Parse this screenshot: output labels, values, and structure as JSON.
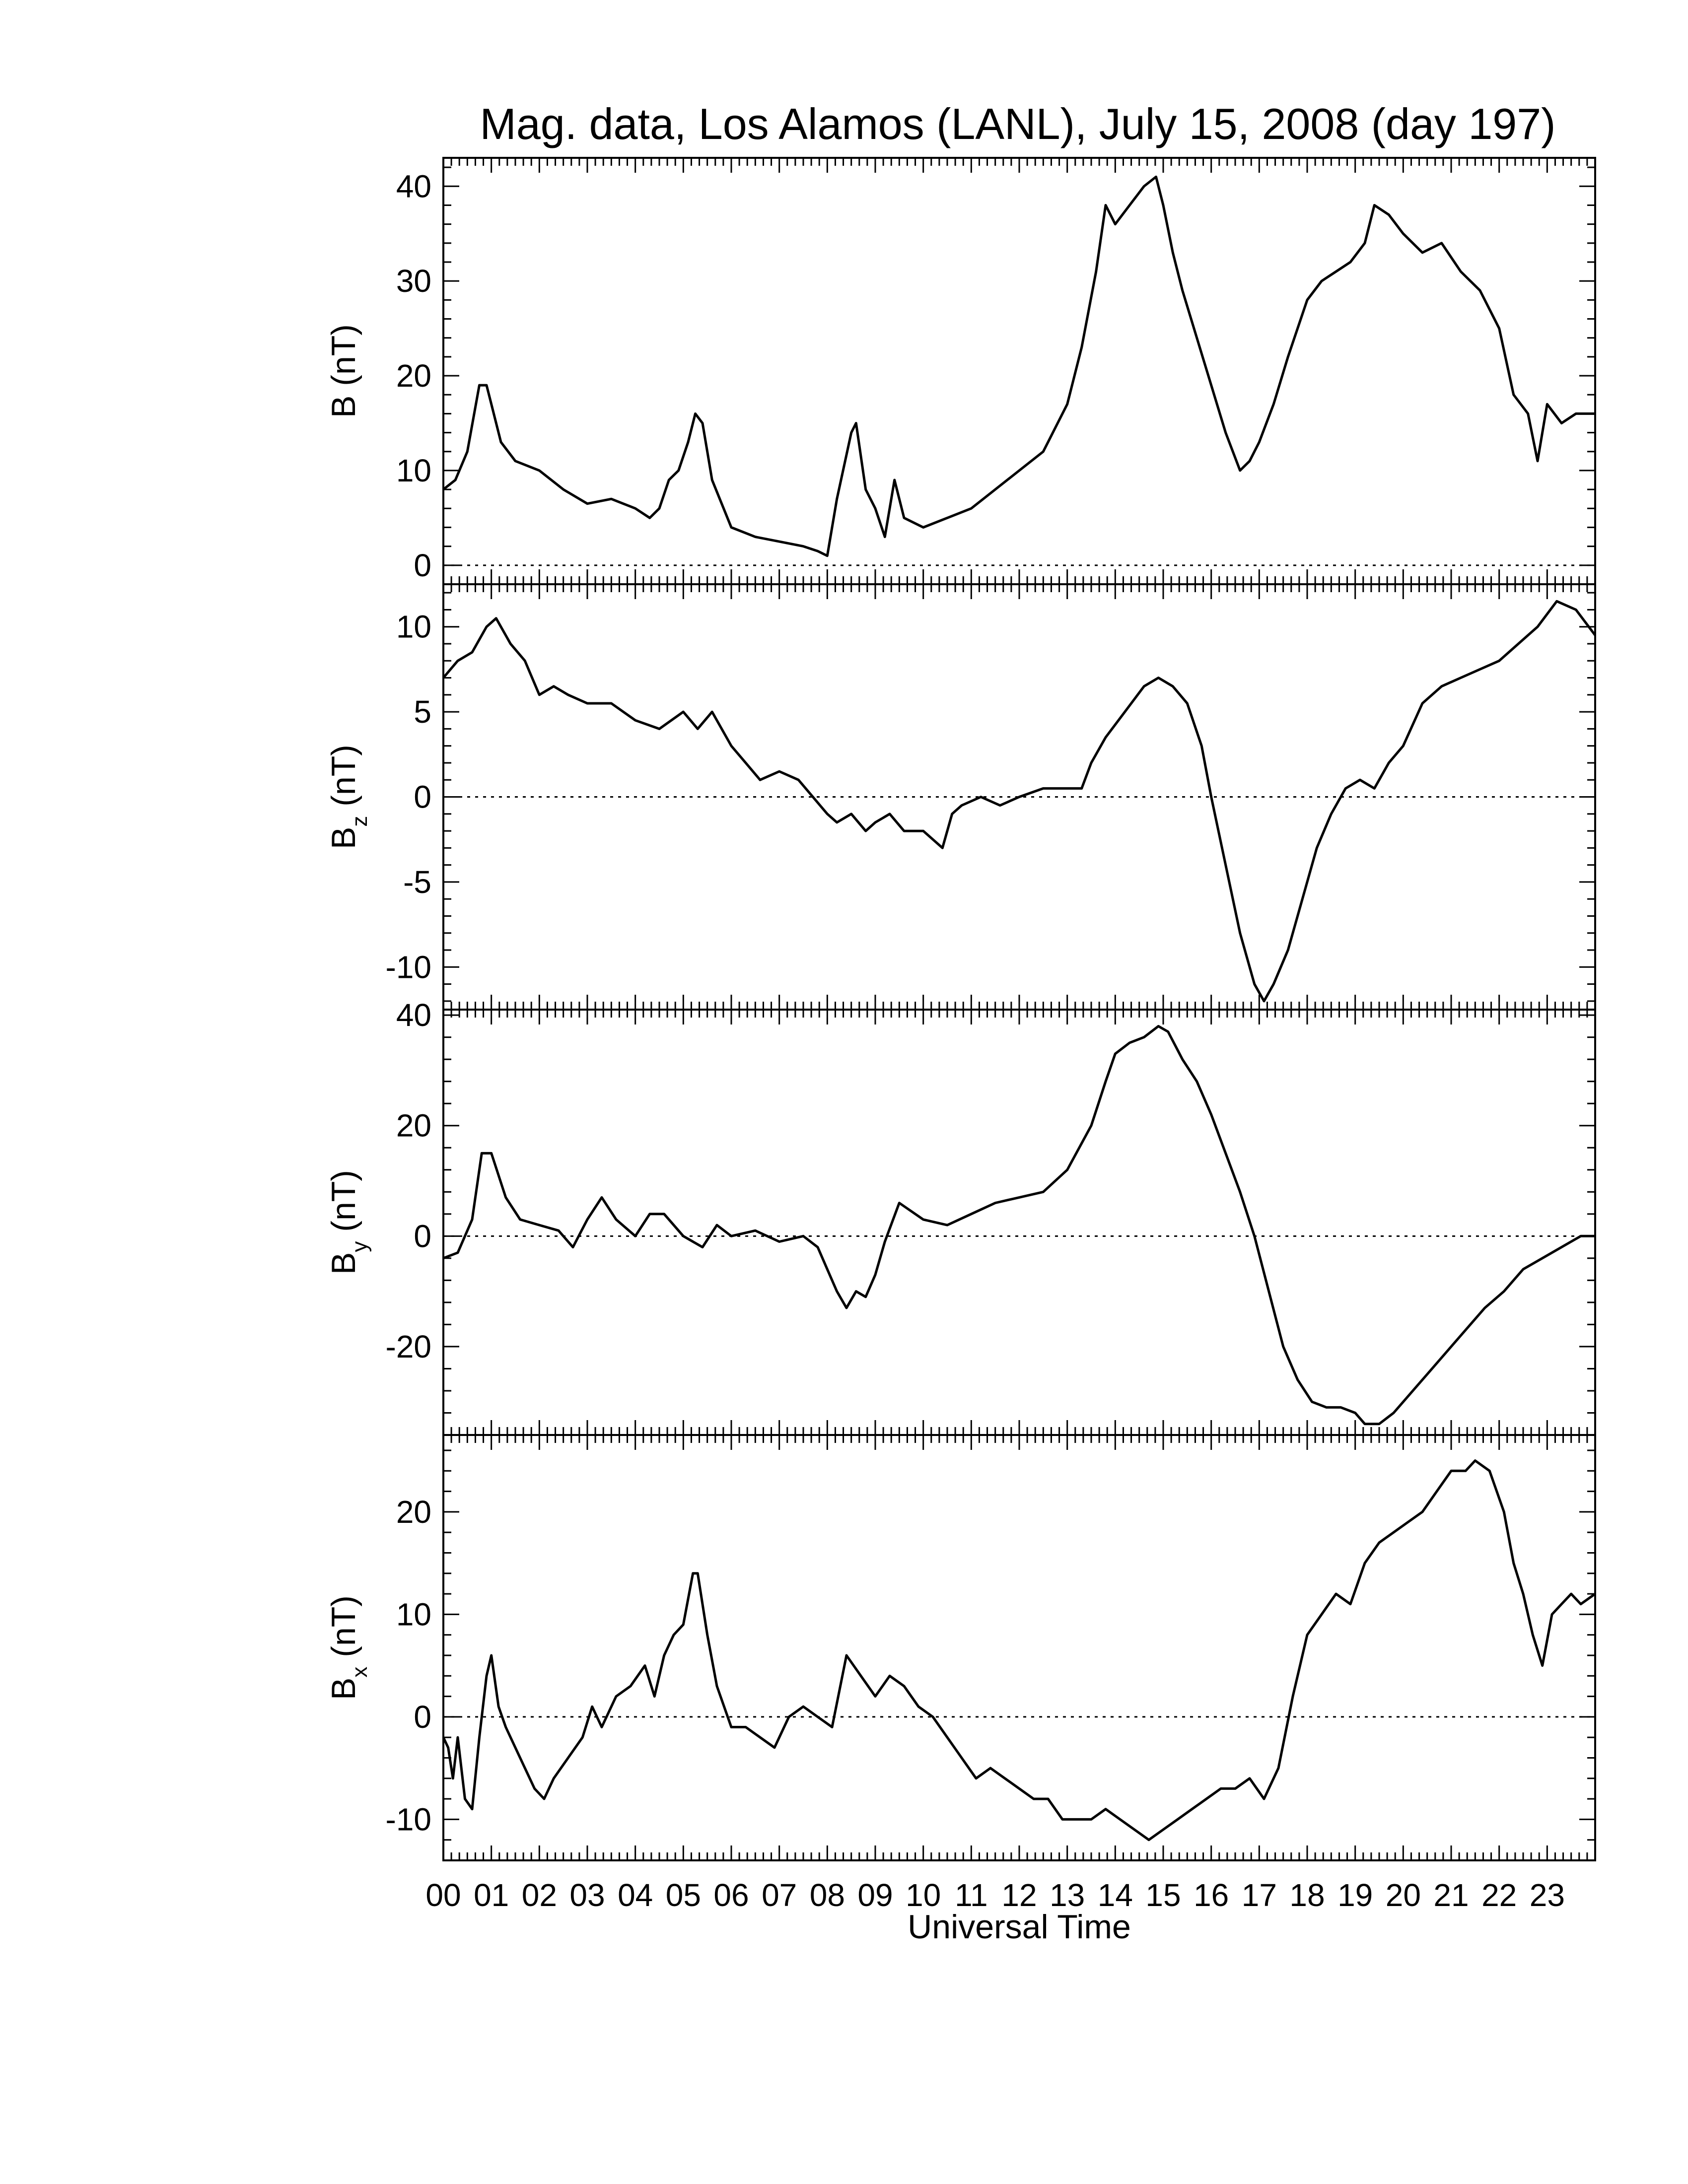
{
  "title": "Mag. data, Los Alamos (LANL), July 15, 2008 (day 197)",
  "xlabel": "Universal Time",
  "x_tick_labels": [
    "00",
    "01",
    "02",
    "03",
    "04",
    "05",
    "06",
    "07",
    "08",
    "09",
    "10",
    "11",
    "12",
    "13",
    "14",
    "15",
    "16",
    "17",
    "18",
    "19",
    "20",
    "21",
    "22",
    "23"
  ],
  "chart_data": [
    {
      "type": "line",
      "name": "B",
      "ylabel_main": "B (nT)",
      "ylabel_sub": "",
      "ylabel_suffix": "",
      "xlim": [
        0,
        24
      ],
      "ylim": [
        -2,
        43
      ],
      "yticks": [
        0,
        10,
        20,
        30,
        40
      ],
      "zero_line": true,
      "x": [
        0.0,
        0.25,
        0.5,
        0.75,
        0.9,
        1.0,
        1.2,
        1.5,
        2.0,
        2.5,
        3.0,
        3.5,
        4.0,
        4.3,
        4.5,
        4.7,
        4.9,
        5.1,
        5.25,
        5.4,
        5.6,
        6.0,
        6.5,
        7.0,
        7.5,
        7.8,
        8.0,
        8.2,
        8.5,
        8.6,
        8.8,
        9.0,
        9.2,
        9.4,
        9.6,
        10.0,
        10.5,
        11.0,
        11.5,
        12.0,
        12.5,
        13.0,
        13.3,
        13.6,
        13.8,
        14.0,
        14.3,
        14.6,
        14.85,
        15.0,
        15.2,
        15.4,
        15.7,
        16.0,
        16.3,
        16.6,
        16.8,
        17.0,
        17.3,
        17.6,
        18.0,
        18.3,
        18.6,
        18.9,
        19.2,
        19.4,
        19.7,
        20.0,
        20.4,
        20.8,
        21.2,
        21.6,
        22.0,
        22.3,
        22.6,
        22.8,
        23.0,
        23.3,
        23.6,
        24.0
      ],
      "y": [
        8,
        9,
        12,
        19,
        19,
        17,
        13,
        11,
        10,
        8,
        6.5,
        7,
        6,
        5,
        6,
        9,
        10,
        13,
        16,
        15,
        9,
        4,
        3,
        2.5,
        2,
        1.5,
        1,
        7,
        14,
        15,
        8,
        6,
        3,
        9,
        5,
        4,
        5,
        6,
        8,
        10,
        12,
        17,
        23,
        31,
        38,
        36,
        38,
        40,
        41,
        38,
        33,
        29,
        24,
        19,
        14,
        10,
        11,
        13,
        17,
        22,
        28,
        30,
        31,
        32,
        34,
        38,
        37,
        35,
        33,
        34,
        31,
        29,
        25,
        18,
        16,
        11,
        17,
        15,
        16,
        16
      ]
    },
    {
      "type": "line",
      "name": "Bz",
      "ylabel_main": "B",
      "ylabel_sub": "z",
      "ylabel_suffix": " (nT)",
      "xlim": [
        0,
        24
      ],
      "ylim": [
        -12.5,
        12.5
      ],
      "yticks": [
        -10,
        -5,
        0,
        5,
        10
      ],
      "zero_line": true,
      "x": [
        0.0,
        0.3,
        0.6,
        0.9,
        1.1,
        1.4,
        1.7,
        2.0,
        2.3,
        2.6,
        3.0,
        3.5,
        4.0,
        4.5,
        5.0,
        5.3,
        5.6,
        6.0,
        6.3,
        6.6,
        7.0,
        7.4,
        7.7,
        8.0,
        8.2,
        8.5,
        8.8,
        9.0,
        9.3,
        9.6,
        10.0,
        10.4,
        10.6,
        10.8,
        11.2,
        11.6,
        12.0,
        12.5,
        13.0,
        13.3,
        13.5,
        13.8,
        14.2,
        14.6,
        14.9,
        15.2,
        15.5,
        15.8,
        16.0,
        16.3,
        16.6,
        16.9,
        17.1,
        17.3,
        17.6,
        17.9,
        18.2,
        18.5,
        18.8,
        19.1,
        19.4,
        19.7,
        20.0,
        20.4,
        20.8,
        21.2,
        21.6,
        22.0,
        22.4,
        22.8,
        23.2,
        23.6,
        24.0
      ],
      "y": [
        7,
        8,
        8.5,
        10,
        10.5,
        9,
        8,
        6,
        6.5,
        6,
        5.5,
        5.5,
        4.5,
        4,
        5,
        4,
        5,
        3,
        2,
        1,
        1.5,
        1,
        0,
        -1,
        -1.5,
        -1,
        -2,
        -1.5,
        -1,
        -2,
        -2,
        -3,
        -1,
        -0.5,
        0,
        -0.5,
        0,
        0.5,
        0.5,
        0.5,
        2,
        3.5,
        5,
        6.5,
        7,
        6.5,
        5.5,
        3,
        0,
        -4,
        -8,
        -11,
        -12,
        -11,
        -9,
        -6,
        -3,
        -1,
        0.5,
        1,
        0.5,
        2,
        3,
        5.5,
        6.5,
        7,
        7.5,
        8,
        9,
        10,
        11.5,
        11,
        9.5
      ]
    },
    {
      "type": "line",
      "name": "By",
      "ylabel_main": "B",
      "ylabel_sub": "y",
      "ylabel_suffix": " (nT)",
      "xlim": [
        0,
        24
      ],
      "ylim": [
        -36,
        41
      ],
      "yticks": [
        -20,
        0,
        20,
        40
      ],
      "zero_line": true,
      "x": [
        0.0,
        0.3,
        0.6,
        0.8,
        1.0,
        1.3,
        1.6,
        2.0,
        2.4,
        2.7,
        3.0,
        3.3,
        3.6,
        4.0,
        4.3,
        4.6,
        5.0,
        5.4,
        5.7,
        6.0,
        6.5,
        7.0,
        7.5,
        7.8,
        8.0,
        8.2,
        8.4,
        8.6,
        8.8,
        9.0,
        9.2,
        9.5,
        10.0,
        10.5,
        11.0,
        11.5,
        12.0,
        12.5,
        13.0,
        13.5,
        13.8,
        14.0,
        14.3,
        14.6,
        14.9,
        15.1,
        15.4,
        15.7,
        16.0,
        16.3,
        16.6,
        16.9,
        17.2,
        17.5,
        17.8,
        18.1,
        18.4,
        18.7,
        19.0,
        19.2,
        19.5,
        19.8,
        20.1,
        20.5,
        20.9,
        21.3,
        21.7,
        22.1,
        22.5,
        22.9,
        23.3,
        23.7,
        24.0
      ],
      "y": [
        -4,
        -3,
        3,
        15,
        15,
        7,
        3,
        2,
        1,
        -2,
        3,
        7,
        3,
        0,
        4,
        4,
        0,
        -2,
        2,
        0,
        1,
        -1,
        0,
        -2,
        -6,
        -10,
        -13,
        -10,
        -11,
        -7,
        -1,
        6,
        3,
        2,
        4,
        6,
        7,
        8,
        12,
        20,
        28,
        33,
        35,
        36,
        38,
        37,
        32,
        28,
        22,
        15,
        8,
        0,
        -10,
        -20,
        -26,
        -30,
        -31,
        -31,
        -32,
        -34,
        -34,
        -32,
        -29,
        -25,
        -21,
        -17,
        -13,
        -10,
        -6,
        -4,
        -2,
        0,
        0
      ]
    },
    {
      "type": "line",
      "name": "Bx",
      "ylabel_main": "B",
      "ylabel_sub": "x",
      "ylabel_suffix": " (nT)",
      "xlim": [
        0,
        24
      ],
      "ylim": [
        -14,
        27.5
      ],
      "yticks": [
        -10,
        0,
        10,
        20
      ],
      "zero_line": true,
      "x": [
        0.0,
        0.1,
        0.2,
        0.3,
        0.45,
        0.6,
        0.75,
        0.9,
        1.0,
        1.15,
        1.3,
        1.5,
        1.7,
        1.9,
        2.1,
        2.3,
        2.6,
        2.9,
        3.1,
        3.3,
        3.6,
        3.9,
        4.2,
        4.4,
        4.6,
        4.8,
        5.0,
        5.2,
        5.3,
        5.5,
        5.7,
        6.0,
        6.3,
        6.6,
        6.9,
        7.2,
        7.5,
        7.8,
        8.1,
        8.4,
        8.7,
        9.0,
        9.3,
        9.6,
        9.9,
        10.2,
        10.5,
        10.8,
        11.1,
        11.4,
        11.7,
        12.0,
        12.3,
        12.6,
        12.9,
        13.2,
        13.5,
        13.8,
        14.1,
        14.4,
        14.7,
        15.0,
        15.3,
        15.6,
        15.9,
        16.2,
        16.5,
        16.8,
        17.1,
        17.4,
        17.7,
        18.0,
        18.3,
        18.6,
        18.9,
        19.2,
        19.5,
        19.8,
        20.1,
        20.4,
        20.7,
        21.0,
        21.3,
        21.5,
        21.8,
        22.1,
        22.3,
        22.5,
        22.7,
        22.9,
        23.1,
        23.3,
        23.5,
        23.7,
        24.0
      ],
      "y": [
        -2,
        -3,
        -6,
        -2,
        -8,
        -9,
        -2,
        4,
        6,
        1,
        -1,
        -3,
        -5,
        -7,
        -8,
        -6,
        -4,
        -2,
        1,
        -1,
        2,
        3,
        5,
        2,
        6,
        8,
        9,
        14,
        14,
        8,
        3,
        -1,
        -1,
        -2,
        -3,
        0,
        1,
        0,
        -1,
        6,
        4,
        2,
        4,
        3,
        1,
        0,
        -2,
        -4,
        -6,
        -5,
        -6,
        -7,
        -8,
        -8,
        -10,
        -10,
        -10,
        -9,
        -10,
        -11,
        -12,
        -11,
        -10,
        -9,
        -8,
        -7,
        -7,
        -6,
        -8,
        -5,
        2,
        8,
        10,
        12,
        11,
        15,
        17,
        18,
        19,
        20,
        22,
        24,
        24,
        25,
        24,
        20,
        15,
        12,
        8,
        5,
        10,
        11,
        12,
        11,
        12
      ]
    }
  ]
}
